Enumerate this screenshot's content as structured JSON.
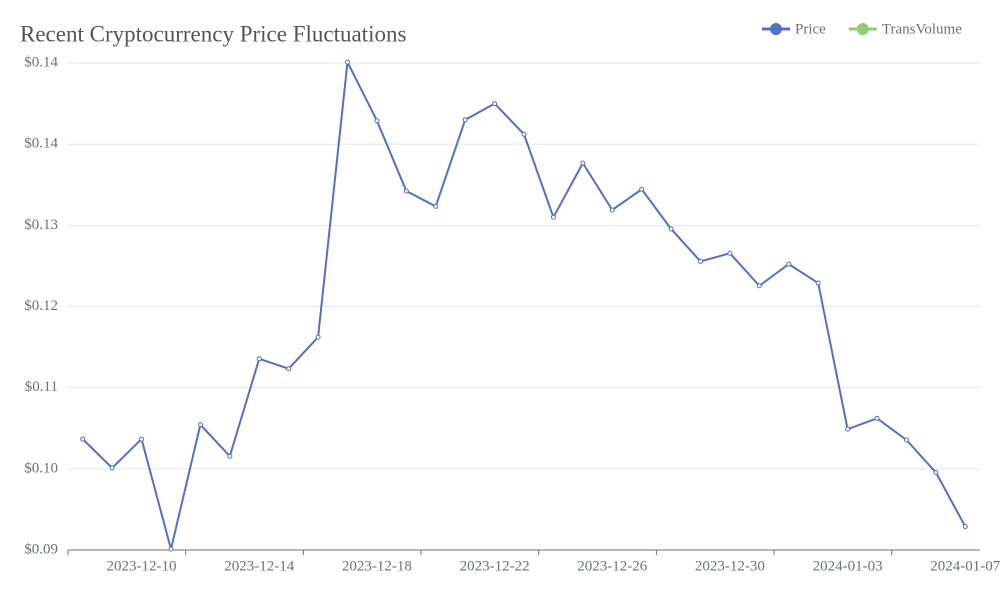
{
  "chart_data": {
    "type": "line",
    "title": "Recent Cryptocurrency Price Fluctuations",
    "categories": [
      null,
      null,
      "2023-12-10",
      null,
      null,
      null,
      "2023-12-14",
      null,
      null,
      null,
      "2023-12-18",
      null,
      null,
      null,
      "2023-12-22",
      null,
      null,
      null,
      "2023-12-26",
      null,
      null,
      null,
      "2023-12-30",
      null,
      null,
      null,
      "2024-01-03",
      null,
      null,
      null,
      "2024-01-07"
    ],
    "series": [
      {
        "name": "Price",
        "color": "#5470c6",
        "values": [
          0.1023,
          0.0991,
          0.1023,
          0.0901,
          0.1039,
          0.1004,
          0.1112,
          0.1101,
          0.1136,
          0.1441,
          0.1376,
          0.1298,
          0.1281,
          0.1377,
          0.1395,
          0.1361,
          0.1269,
          0.1329,
          0.1277,
          0.13,
          0.1256,
          0.122,
          0.1229,
          0.1193,
          0.1217,
          0.1196,
          0.1034,
          0.1046,
          0.1022,
          0.0986,
          0.0926
        ]
      },
      {
        "name": "TransVolume",
        "color": "#91cc75",
        "values": [
          null,
          null,
          null,
          null,
          null,
          null,
          null,
          null,
          null,
          null,
          null,
          null,
          null,
          null,
          null,
          null,
          null,
          null,
          null,
          null,
          null,
          null,
          null,
          null,
          null,
          null,
          null,
          null,
          null,
          null,
          null
        ]
      }
    ],
    "ylim": [
      0.09,
      0.144
    ],
    "yticks": [
      {
        "value": 0.09,
        "label": "$0.09"
      },
      {
        "value": 0.099,
        "label": "$0.10"
      },
      {
        "value": 0.108,
        "label": "$0.11"
      },
      {
        "value": 0.117,
        "label": "$0.12"
      },
      {
        "value": 0.126,
        "label": "$0.13"
      },
      {
        "value": 0.135,
        "label": "$0.14"
      },
      {
        "value": 0.144,
        "label": "$0.14"
      }
    ],
    "grid": true,
    "legend": "top-right"
  }
}
